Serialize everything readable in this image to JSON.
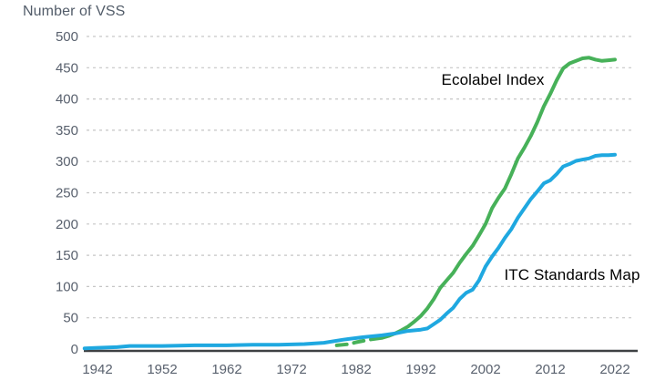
{
  "chart_data": {
    "type": "line",
    "title": "Number of VSS",
    "x_ticks": [
      1942,
      1952,
      1962,
      1972,
      1982,
      1992,
      2002,
      2012,
      2022
    ],
    "y_ticks": [
      0,
      50,
      100,
      150,
      200,
      250,
      300,
      350,
      400,
      450,
      500
    ],
    "xlim": [
      1940,
      2025
    ],
    "ylim": [
      0,
      500
    ],
    "grid": "horizontal-dashed",
    "grid_color": "#c6c6c6",
    "axis_color": "#3e4143",
    "text_color": "#59616e",
    "legend_position": "inline-labels",
    "series": [
      {
        "name": "Ecolabel Index",
        "color": "#47b159",
        "dashed_until": 1986,
        "points": [
          [
            1979,
            6
          ],
          [
            1981,
            8
          ],
          [
            1982,
            11
          ],
          [
            1984,
            15
          ],
          [
            1986,
            18
          ],
          [
            1987,
            21
          ],
          [
            1988,
            25
          ],
          [
            1989,
            30
          ],
          [
            1990,
            36
          ],
          [
            1991,
            44
          ],
          [
            1992,
            53
          ],
          [
            1993,
            65
          ],
          [
            1994,
            80
          ],
          [
            1995,
            98
          ],
          [
            1996,
            110
          ],
          [
            1997,
            122
          ],
          [
            1998,
            138
          ],
          [
            1999,
            152
          ],
          [
            2000,
            165
          ],
          [
            2001,
            182
          ],
          [
            2002,
            200
          ],
          [
            2003,
            225
          ],
          [
            2004,
            242
          ],
          [
            2005,
            257
          ],
          [
            2006,
            280
          ],
          [
            2007,
            305
          ],
          [
            2008,
            322
          ],
          [
            2009,
            341
          ],
          [
            2010,
            363
          ],
          [
            2011,
            388
          ],
          [
            2012,
            408
          ],
          [
            2013,
            430
          ],
          [
            2014,
            449
          ],
          [
            2015,
            457
          ],
          [
            2016,
            461
          ],
          [
            2017,
            465
          ],
          [
            2018,
            466
          ],
          [
            2019,
            463
          ],
          [
            2020,
            461
          ],
          [
            2021,
            462
          ],
          [
            2022,
            463
          ]
        ]
      },
      {
        "name": "ITC Standards Map",
        "color": "#1fa8e0",
        "points": [
          [
            1940,
            1
          ],
          [
            1942,
            2
          ],
          [
            1945,
            3
          ],
          [
            1947,
            5
          ],
          [
            1952,
            5
          ],
          [
            1957,
            6
          ],
          [
            1962,
            6
          ],
          [
            1966,
            7
          ],
          [
            1970,
            7
          ],
          [
            1974,
            8
          ],
          [
            1977,
            10
          ],
          [
            1980,
            15
          ],
          [
            1983,
            19
          ],
          [
            1986,
            22
          ],
          [
            1988,
            25
          ],
          [
            1990,
            29
          ],
          [
            1992,
            31
          ],
          [
            1993,
            33
          ],
          [
            1994,
            40
          ],
          [
            1995,
            47
          ],
          [
            1996,
            57
          ],
          [
            1997,
            66
          ],
          [
            1998,
            80
          ],
          [
            1999,
            90
          ],
          [
            2000,
            95
          ],
          [
            2001,
            110
          ],
          [
            2002,
            132
          ],
          [
            2003,
            148
          ],
          [
            2004,
            162
          ],
          [
            2005,
            178
          ],
          [
            2006,
            192
          ],
          [
            2007,
            210
          ],
          [
            2008,
            225
          ],
          [
            2009,
            240
          ],
          [
            2010,
            252
          ],
          [
            2011,
            265
          ],
          [
            2012,
            270
          ],
          [
            2013,
            280
          ],
          [
            2014,
            292
          ],
          [
            2015,
            296
          ],
          [
            2016,
            301
          ],
          [
            2017,
            303
          ],
          [
            2018,
            305
          ],
          [
            2019,
            309
          ],
          [
            2020,
            310
          ],
          [
            2021,
            310
          ],
          [
            2022,
            311
          ]
        ]
      }
    ]
  }
}
